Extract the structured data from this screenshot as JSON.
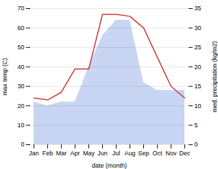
{
  "chart_data": {
    "type": "combo",
    "categories": [
      "Jan",
      "Feb",
      "Mar",
      "Apr",
      "May",
      "Jun",
      "Jul",
      "Aug",
      "Sep",
      "Oct",
      "Nov",
      "Dec"
    ],
    "series": [
      {
        "type": "area",
        "axis": "y2",
        "color": "#b0c4f0",
        "values": [
          11,
          10,
          11,
          11,
          20,
          28,
          32,
          32,
          16,
          14,
          14,
          14
        ]
      },
      {
        "type": "line",
        "color": "#cc3333",
        "values": [
          24,
          23,
          27,
          39,
          39,
          67,
          67,
          66,
          60,
          45,
          30,
          24
        ]
      }
    ],
    "xlabel": "date (month)",
    "ylabel": "max temp (C)",
    "y2label": "med. precipitation (kg/m2)",
    "ylim": [
      0,
      70
    ],
    "yticks": [
      0,
      10,
      20,
      30,
      40,
      50,
      60,
      70
    ],
    "y2lim": [
      0,
      35
    ],
    "y2ticks": [
      0,
      5,
      10,
      15,
      20,
      25,
      30,
      35
    ],
    "grid": true
  }
}
